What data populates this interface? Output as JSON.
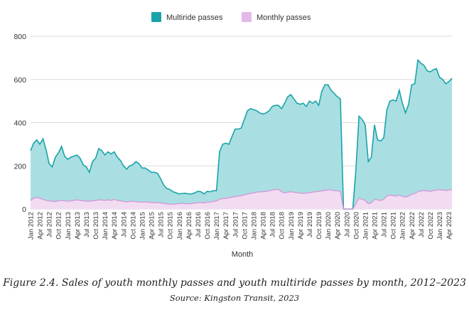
{
  "chart_data": {
    "type": "area",
    "title": "",
    "xlabel": "Month",
    "ylabel": "",
    "ylim": [
      0,
      800
    ],
    "yticks": [
      0,
      200,
      400,
      600,
      800
    ],
    "grid": true,
    "legend_position": "top-center",
    "start_month": "Jan 2012",
    "x_tick_labels": [
      "Jan 2012",
      "Apr 2012",
      "Jul 2012",
      "Oct 2012",
      "Jan 2013",
      "Apr 2013",
      "Jul 2013",
      "Oct 2013",
      "Jan 2014",
      "Apr 2014",
      "Jul 2014",
      "Oct 2014",
      "Jan 2015",
      "Apr 2015",
      "Jul 2015",
      "Oct 2015",
      "Jan 2016",
      "Apr 2016",
      "Jul 2016",
      "Oct 2016",
      "Jan 2017",
      "Apr 2017",
      "Jul 2017",
      "Oct 2017",
      "Jan 2018",
      "Apr 2018",
      "Jul 2018",
      "Oct 2018",
      "Jan 2019",
      "Apr 2019",
      "Jul 2019",
      "Oct 2019",
      "Jan 2020",
      "Apr 2020",
      "Jul 2020",
      "Oct 2020",
      "Jan 2021",
      "Apr 2021",
      "Jul 2021",
      "Oct 2021",
      "Jan 2022",
      "Apr 2022",
      "Jul 2022",
      "Oct 2022",
      "Jan 2023",
      "Apr 2023"
    ],
    "series": [
      {
        "name": "Multiride passes",
        "line_color": "#1aa3a8",
        "fill_color": "#a9dfe2",
        "values": [
          270,
          305,
          320,
          300,
          325,
          275,
          210,
          195,
          240,
          260,
          290,
          245,
          230,
          240,
          245,
          250,
          235,
          205,
          195,
          170,
          220,
          235,
          280,
          270,
          250,
          265,
          255,
          265,
          240,
          225,
          200,
          185,
          200,
          205,
          220,
          210,
          190,
          190,
          180,
          170,
          170,
          165,
          140,
          110,
          95,
          90,
          80,
          75,
          70,
          72,
          73,
          70,
          70,
          75,
          82,
          80,
          70,
          82,
          80,
          85,
          85,
          265,
          300,
          305,
          300,
          335,
          370,
          370,
          375,
          415,
          455,
          465,
          460,
          455,
          445,
          440,
          445,
          455,
          475,
          480,
          480,
          465,
          490,
          520,
          530,
          510,
          490,
          485,
          490,
          475,
          500,
          490,
          500,
          480,
          545,
          575,
          575,
          550,
          535,
          520,
          510,
          0,
          0,
          0,
          0,
          180,
          430,
          415,
          390,
          220,
          240,
          390,
          320,
          315,
          330,
          460,
          500,
          505,
          500,
          550,
          490,
          445,
          485,
          575,
          580,
          690,
          675,
          665,
          640,
          635,
          645,
          650,
          610,
          600,
          580,
          590,
          605
        ]
      },
      {
        "name": "Monthly passes",
        "line_color": "#d39ad9",
        "fill_color": "#f2dcf2",
        "values": [
          40,
          50,
          55,
          50,
          45,
          40,
          38,
          36,
          35,
          38,
          40,
          38,
          36,
          38,
          40,
          42,
          40,
          38,
          37,
          36,
          38,
          40,
          42,
          42,
          40,
          42,
          40,
          45,
          40,
          38,
          35,
          33,
          35,
          36,
          34,
          33,
          32,
          33,
          32,
          30,
          30,
          30,
          28,
          26,
          24,
          22,
          22,
          24,
          25,
          26,
          25,
          24,
          25,
          28,
          30,
          30,
          28,
          32,
          32,
          35,
          38,
          45,
          48,
          50,
          52,
          55,
          58,
          60,
          62,
          65,
          70,
          72,
          75,
          78,
          80,
          80,
          82,
          84,
          88,
          90,
          92,
          80,
          75,
          78,
          80,
          78,
          76,
          74,
          72,
          74,
          76,
          78,
          80,
          82,
          84,
          86,
          90,
          88,
          85,
          84,
          82,
          0,
          0,
          0,
          0,
          25,
          50,
          45,
          40,
          25,
          30,
          45,
          42,
          40,
          45,
          60,
          65,
          62,
          60,
          65,
          58,
          55,
          60,
          68,
          72,
          80,
          84,
          86,
          84,
          82,
          85,
          88,
          90,
          88,
          86,
          88,
          90
        ]
      }
    ]
  },
  "caption": {
    "text": "Figure 2.4. Sales of youth monthly passes and youth multiride passes by month, 2012–2023",
    "source": "Source: Kingston Transit, 2023"
  }
}
